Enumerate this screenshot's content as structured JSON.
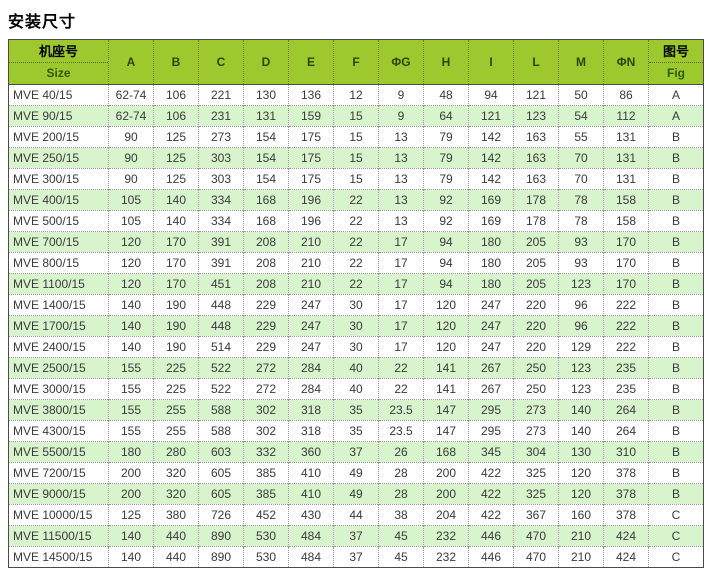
{
  "page": {
    "title": "安装尺寸"
  },
  "colors": {
    "header_bg": "#9dc92e",
    "header_text_cn": "#000000",
    "header_text_en": "#2e5a05",
    "row_alt_bg": "#d8f4cc",
    "outer_border": "#4a4a4a",
    "inner_border_dotted": "#9a9a9a",
    "body_text": "#3a3a3a"
  },
  "table": {
    "header": {
      "size_col": {
        "line1": "机座号",
        "line2": "Size"
      },
      "dim_cols": [
        "A",
        "B",
        "C",
        "D",
        "E",
        "F",
        "ΦG",
        "H",
        "I",
        "L",
        "M",
        "ΦN"
      ],
      "fig_col": {
        "line1": "图号",
        "line2": "Fig"
      }
    },
    "rows": [
      {
        "size": "MVE 40/15",
        "values": [
          "62-74",
          "106",
          "221",
          "130",
          "136",
          "12",
          "9",
          "48",
          "94",
          "121",
          "50",
          "86"
        ],
        "fig": "A"
      },
      {
        "size": "MVE 90/15",
        "values": [
          "62-74",
          "106",
          "231",
          "131",
          "159",
          "15",
          "9",
          "64",
          "121",
          "123",
          "54",
          "112"
        ],
        "fig": "A"
      },
      {
        "size": "MVE 200/15",
        "values": [
          "90",
          "125",
          "273",
          "154",
          "175",
          "15",
          "13",
          "79",
          "142",
          "163",
          "55",
          "131"
        ],
        "fig": "B"
      },
      {
        "size": "MVE 250/15",
        "values": [
          "90",
          "125",
          "303",
          "154",
          "175",
          "15",
          "13",
          "79",
          "142",
          "163",
          "70",
          "131"
        ],
        "fig": "B"
      },
      {
        "size": "MVE 300/15",
        "values": [
          "90",
          "125",
          "303",
          "154",
          "175",
          "15",
          "13",
          "79",
          "142",
          "163",
          "70",
          "131"
        ],
        "fig": "B"
      },
      {
        "size": "MVE 400/15",
        "values": [
          "105",
          "140",
          "334",
          "168",
          "196",
          "22",
          "13",
          "92",
          "169",
          "178",
          "78",
          "158"
        ],
        "fig": "B"
      },
      {
        "size": "MVE 500/15",
        "values": [
          "105",
          "140",
          "334",
          "168",
          "196",
          "22",
          "13",
          "92",
          "169",
          "178",
          "78",
          "158"
        ],
        "fig": "B"
      },
      {
        "size": "MVE 700/15",
        "values": [
          "120",
          "170",
          "391",
          "208",
          "210",
          "22",
          "17",
          "94",
          "180",
          "205",
          "93",
          "170"
        ],
        "fig": "B"
      },
      {
        "size": "MVE 800/15",
        "values": [
          "120",
          "170",
          "391",
          "208",
          "210",
          "22",
          "17",
          "94",
          "180",
          "205",
          "93",
          "170"
        ],
        "fig": "B"
      },
      {
        "size": "MVE 1100/15",
        "values": [
          "120",
          "170",
          "451",
          "208",
          "210",
          "22",
          "17",
          "94",
          "180",
          "205",
          "123",
          "170"
        ],
        "fig": "B"
      },
      {
        "size": "MVE 1400/15",
        "values": [
          "140",
          "190",
          "448",
          "229",
          "247",
          "30",
          "17",
          "120",
          "247",
          "220",
          "96",
          "222"
        ],
        "fig": "B"
      },
      {
        "size": "MVE 1700/15",
        "values": [
          "140",
          "190",
          "448",
          "229",
          "247",
          "30",
          "17",
          "120",
          "247",
          "220",
          "96",
          "222"
        ],
        "fig": "B"
      },
      {
        "size": "MVE 2400/15",
        "values": [
          "140",
          "190",
          "514",
          "229",
          "247",
          "30",
          "17",
          "120",
          "247",
          "220",
          "129",
          "222"
        ],
        "fig": "B"
      },
      {
        "size": "MVE 2500/15",
        "values": [
          "155",
          "225",
          "522",
          "272",
          "284",
          "40",
          "22",
          "141",
          "267",
          "250",
          "123",
          "235"
        ],
        "fig": "B"
      },
      {
        "size": "MVE 3000/15",
        "values": [
          "155",
          "225",
          "522",
          "272",
          "284",
          "40",
          "22",
          "141",
          "267",
          "250",
          "123",
          "235"
        ],
        "fig": "B"
      },
      {
        "size": "MVE 3800/15",
        "values": [
          "155",
          "255",
          "588",
          "302",
          "318",
          "35",
          "23.5",
          "147",
          "295",
          "273",
          "140",
          "264"
        ],
        "fig": "B"
      },
      {
        "size": "MVE 4300/15",
        "values": [
          "155",
          "255",
          "588",
          "302",
          "318",
          "35",
          "23.5",
          "147",
          "295",
          "273",
          "140",
          "264"
        ],
        "fig": "B"
      },
      {
        "size": "MVE 5500/15",
        "values": [
          "180",
          "280",
          "603",
          "332",
          "360",
          "37",
          "26",
          "168",
          "345",
          "304",
          "130",
          "310"
        ],
        "fig": "B"
      },
      {
        "size": "MVE 7200/15",
        "values": [
          "200",
          "320",
          "605",
          "385",
          "410",
          "49",
          "28",
          "200",
          "422",
          "325",
          "120",
          "378"
        ],
        "fig": "B"
      },
      {
        "size": "MVE 9000/15",
        "values": [
          "200",
          "320",
          "605",
          "385",
          "410",
          "49",
          "28",
          "200",
          "422",
          "325",
          "120",
          "378"
        ],
        "fig": "B"
      },
      {
        "size": "MVE 10000/15",
        "values": [
          "125",
          "380",
          "726",
          "452",
          "430",
          "44",
          "38",
          "204",
          "422",
          "367",
          "160",
          "378"
        ],
        "fig": "C"
      },
      {
        "size": "MVE 11500/15",
        "values": [
          "140",
          "440",
          "890",
          "530",
          "484",
          "37",
          "45",
          "232",
          "446",
          "470",
          "210",
          "424"
        ],
        "fig": "C"
      },
      {
        "size": "MVE 14500/15",
        "values": [
          "140",
          "440",
          "890",
          "530",
          "484",
          "37",
          "45",
          "232",
          "446",
          "470",
          "210",
          "424"
        ],
        "fig": "C"
      }
    ]
  }
}
